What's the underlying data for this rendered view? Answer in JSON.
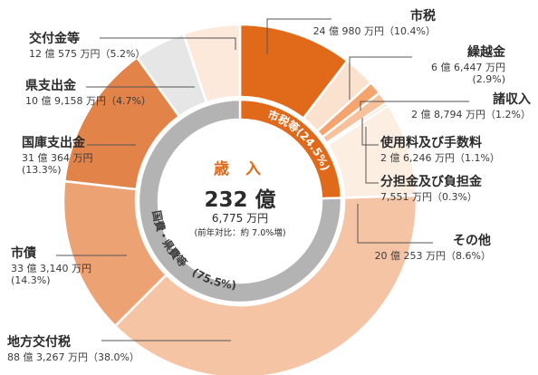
{
  "chart_data": {
    "type": "pie",
    "title": "歳 入",
    "total": "232 億",
    "total_sub": "6,775 万円",
    "yoy": "(前年対比：約 7.0%増)",
    "groups": [
      {
        "name": "市税等",
        "percent": "(24.5%)",
        "color": "#e06a1a"
      },
      {
        "name": "国費・県費等",
        "percent": "(75.5%)",
        "color": "#b3b3b3"
      }
    ],
    "slices": [
      {
        "name": "市税",
        "value_text": "24 億 980 万円（10.4%）",
        "percent": 10.4,
        "color": "#e06a1a"
      },
      {
        "name": "繰越金",
        "value_text": "6 億 6,447 万円\n(2.9%)",
        "percent": 2.9,
        "color": "#fbe2cf"
      },
      {
        "name": "諸収入",
        "value_text": "2 億 8,794 万円（1.2%）",
        "percent": 1.2,
        "color": "#f4a46c"
      },
      {
        "name": "使用料及び手数料",
        "value_text": "2 億 6,246 万円（1.1%）",
        "percent": 1.1,
        "color": "#f7c29b"
      },
      {
        "name": "分担金及び負担金",
        "value_text": "7,551 万円（0.3%）",
        "percent": 0.3,
        "color": "#fad4b7"
      },
      {
        "name": "その他",
        "value_text": "20 億 253 万円（8.6%）",
        "percent": 8.6,
        "color": "#fdeee2"
      },
      {
        "name": "地方交付税",
        "value_text": "88 億 3,267 万円（38.0%）",
        "percent": 38.0,
        "color": "#f5c4a5"
      },
      {
        "name": "市債",
        "value_text": "33 億 3,140 万円\n(14.3%)",
        "percent": 14.3,
        "color": "#eda273"
      },
      {
        "name": "国庫支出金",
        "value_text": "31 億 364 万円\n(13.3%)",
        "percent": 13.3,
        "color": "#e2834a"
      },
      {
        "name": "県支出金",
        "value_text": "10 億 9,158 万円（4.7%）",
        "percent": 4.7,
        "color": "#e6e6e6"
      },
      {
        "name": "交付金等",
        "value_text": "12 億 575 万円（5.2%）",
        "percent": 5.2,
        "color": "#fde9dc"
      }
    ]
  }
}
